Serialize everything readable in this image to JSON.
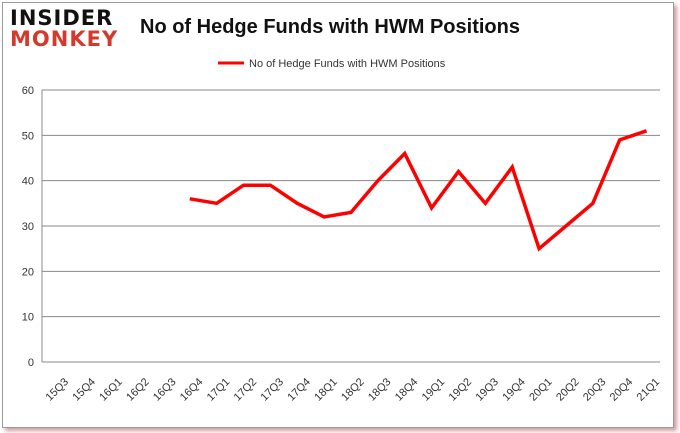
{
  "logo": {
    "line1": "INSIDER",
    "line2": "MONKEY"
  },
  "chart_data": {
    "type": "line",
    "title": "No of Hedge Funds with HWM Positions",
    "legend": {
      "entries": [
        "No of Hedge Funds with HWM Positions"
      ],
      "placement": "top-center"
    },
    "categories": [
      "15Q3",
      "15Q4",
      "16Q1",
      "16Q2",
      "16Q3",
      "16Q4",
      "17Q1",
      "17Q2",
      "17Q3",
      "17Q4",
      "18Q1",
      "18Q2",
      "18Q3",
      "18Q4",
      "19Q1",
      "19Q2",
      "19Q3",
      "19Q4",
      "20Q1",
      "20Q2",
      "20Q3",
      "20Q4",
      "21Q1"
    ],
    "series": [
      {
        "name": "No of Hedge Funds with HWM Positions",
        "color": "#ff0000",
        "values": [
          null,
          null,
          null,
          null,
          null,
          36,
          35,
          39,
          39,
          35,
          32,
          33,
          40,
          46,
          34,
          42,
          35,
          43,
          25,
          30,
          35,
          49,
          51
        ]
      }
    ],
    "ylim": [
      0,
      60
    ],
    "yticks": [
      0,
      10,
      20,
      30,
      40,
      50,
      60
    ],
    "grid": true,
    "xlabel": "",
    "ylabel": ""
  }
}
